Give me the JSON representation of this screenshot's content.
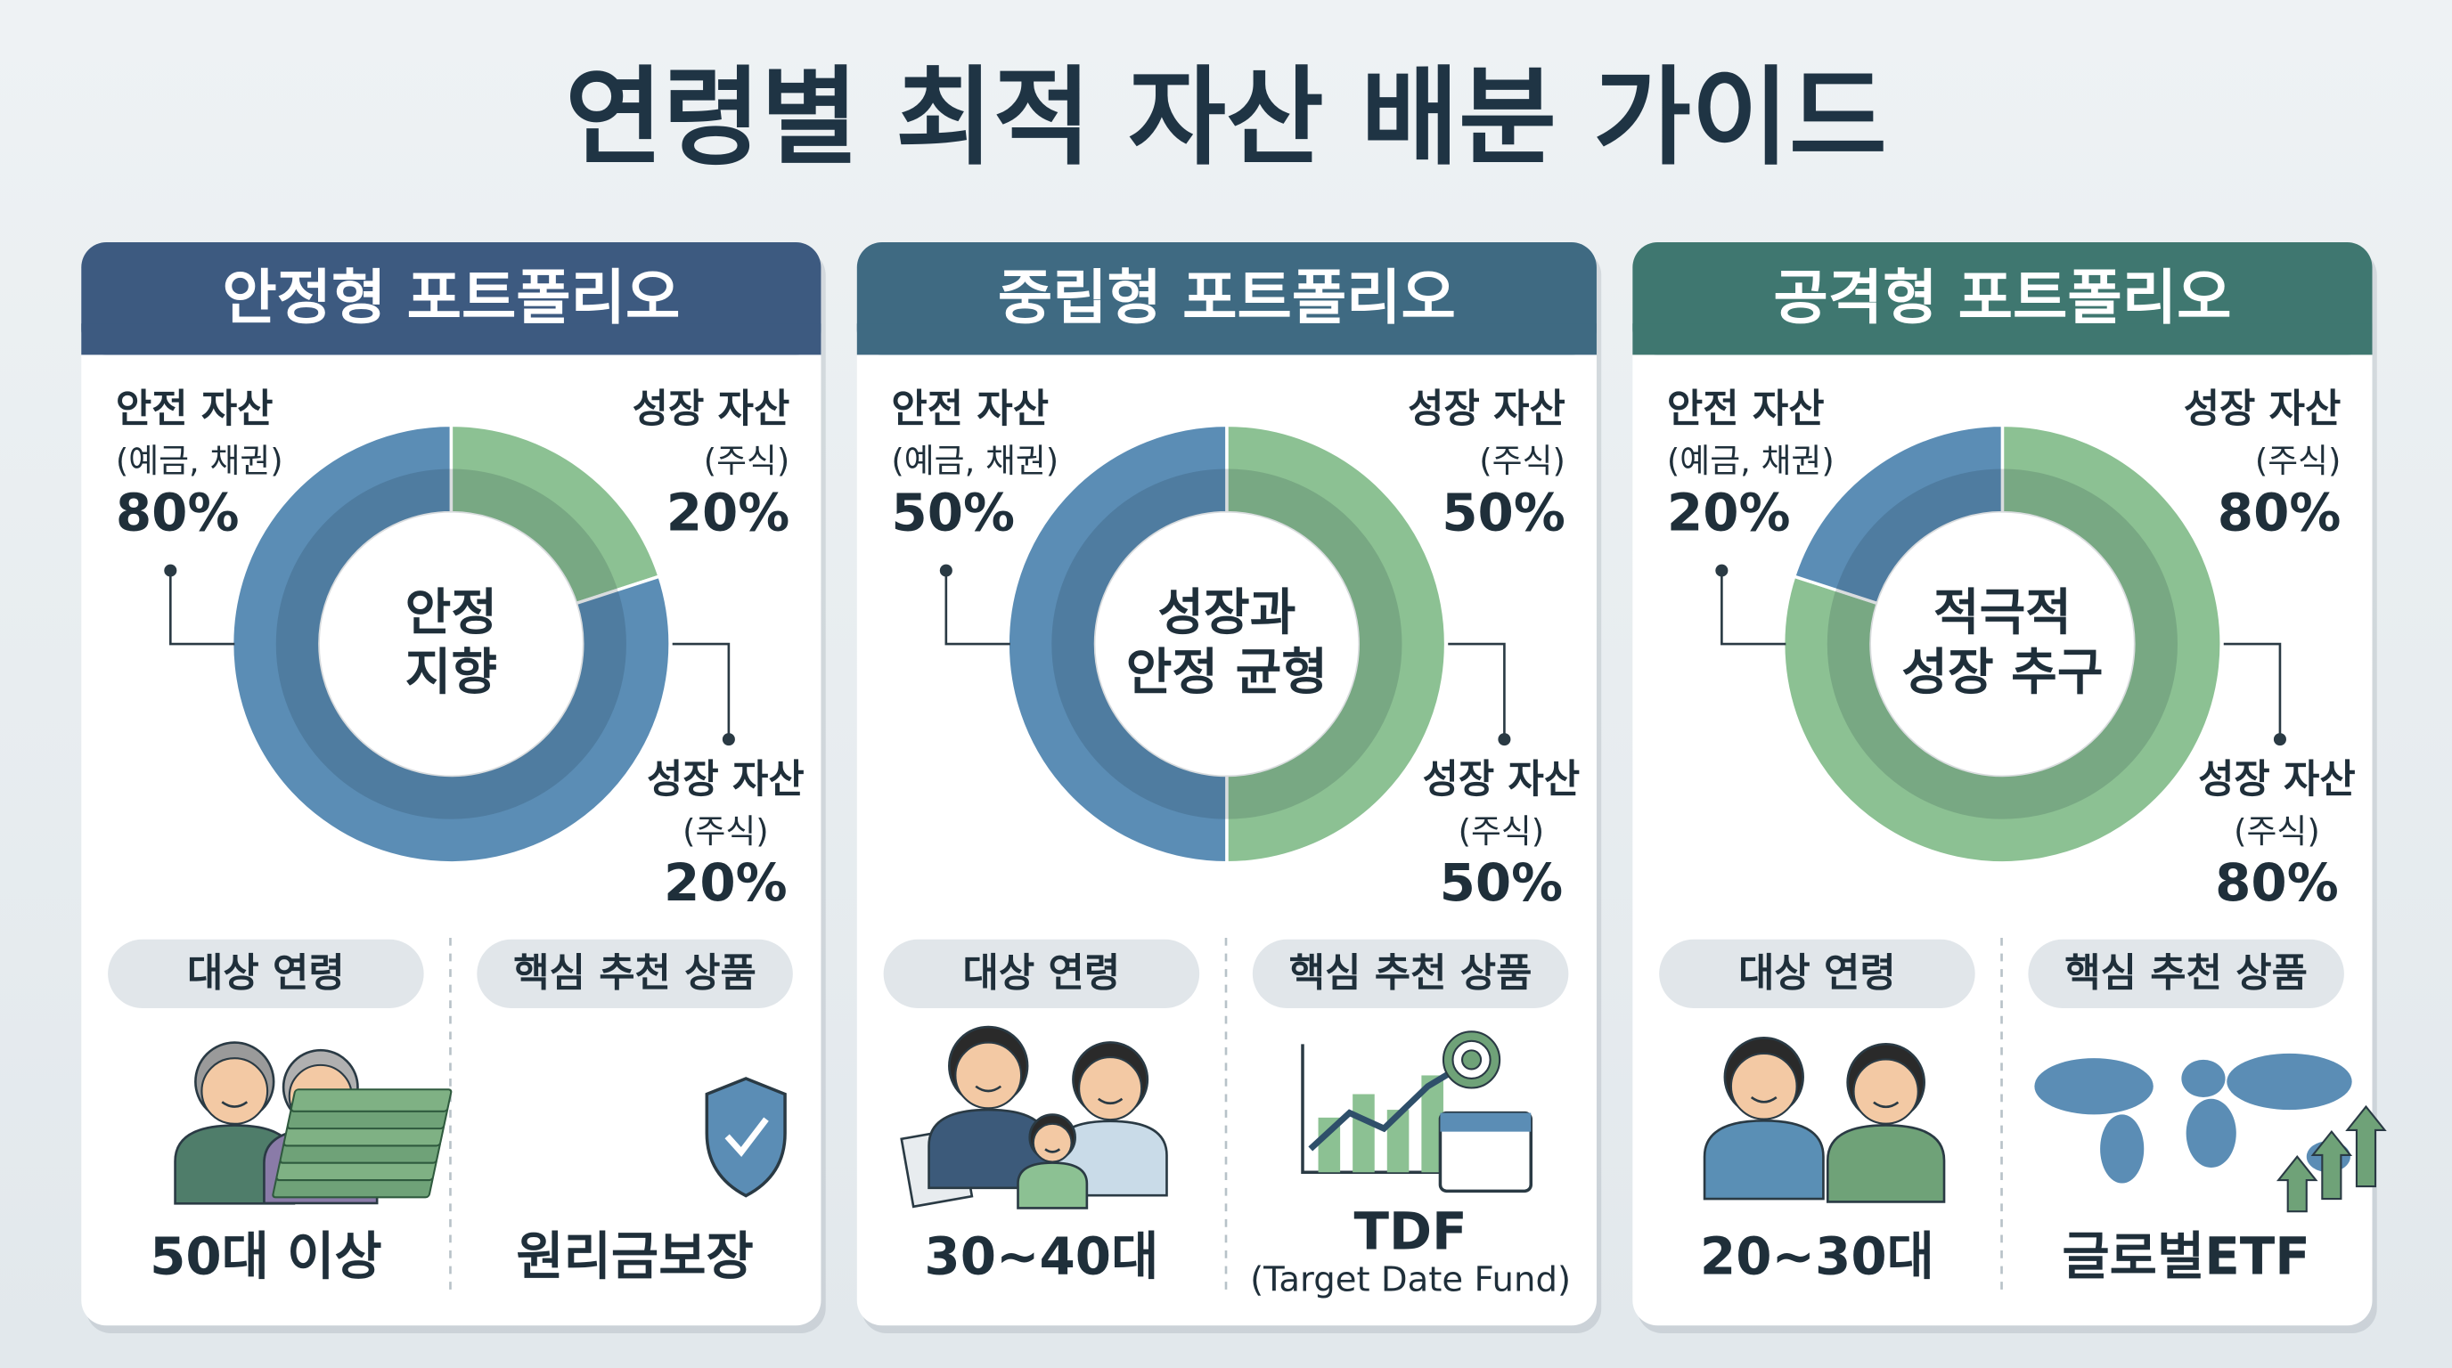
{
  "title": "연령별 최적 자산 배분 가이드",
  "chart_data": [
    {
      "type": "pie",
      "title": "안정형 포트폴리오",
      "center_text": [
        "안정",
        "지향"
      ],
      "categories": [
        "안전 자산",
        "성장 자산"
      ],
      "category_notes": [
        "(예금, 채권)",
        "(주식)"
      ],
      "values": [
        80,
        20
      ],
      "value_labels": [
        "80%",
        "20%"
      ],
      "colors": [
        "#5b8db5",
        "#8cc193"
      ],
      "target_age_label": "대상 연령",
      "target_age": "50대 이상",
      "product_label": "핵심 추천 상품",
      "product": [
        "원리금보장"
      ]
    },
    {
      "type": "pie",
      "title": "중립형 포트폴리오",
      "center_text": [
        "성장과",
        "안정 균형"
      ],
      "categories": [
        "안전 자산",
        "성장 자산"
      ],
      "category_notes": [
        "(예금, 채권)",
        "(주식)"
      ],
      "values": [
        50,
        50
      ],
      "value_labels": [
        "50%",
        "50%"
      ],
      "colors": [
        "#5b8db5",
        "#8cc193"
      ],
      "target_age_label": "대상 연령",
      "target_age": "30~40대",
      "product_label": "핵심 추천 상품",
      "product": [
        "TDF",
        "(Target Date Fund)"
      ]
    },
    {
      "type": "pie",
      "title": "공격형 포트폴리오",
      "center_text": [
        "적극적",
        "성장 추구"
      ],
      "categories": [
        "안전 자산",
        "성장 자산"
      ],
      "category_notes": [
        "(예금, 채권)",
        "(주식)"
      ],
      "values": [
        20,
        80
      ],
      "value_labels": [
        "20%",
        "80%"
      ],
      "colors": [
        "#5b8db5",
        "#8cc193"
      ],
      "target_age_label": "대상 연령",
      "target_age": "20~30대",
      "product_label": "핵심 추천 상품",
      "product": [
        "글로벌ETF"
      ]
    }
  ]
}
